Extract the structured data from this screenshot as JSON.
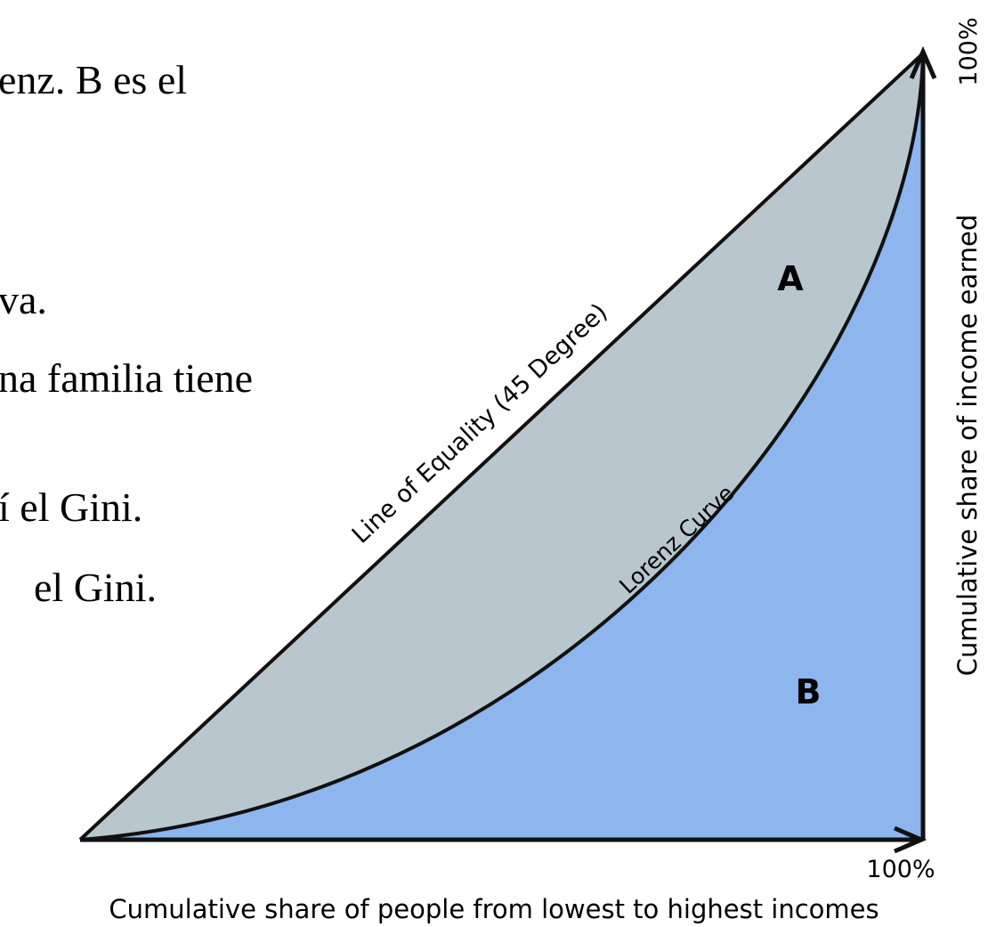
{
  "slide_text": {
    "lines": [
      "enz. B es el",
      "va.",
      "na familia tiene",
      "í el Gini.",
      "el Gini."
    ]
  },
  "diagram": {
    "line_of_equality": "Line of Equality (45 Degree)",
    "lorenz_curve": "Lorenz Curve",
    "area_a": "A",
    "area_b": "B",
    "x_end_label": "100%",
    "y_end_label": "100%",
    "y_axis_label": "Cumulative share of income earned",
    "x_axis_label": "Cumulative share of people from lowest to highest incomes"
  }
}
